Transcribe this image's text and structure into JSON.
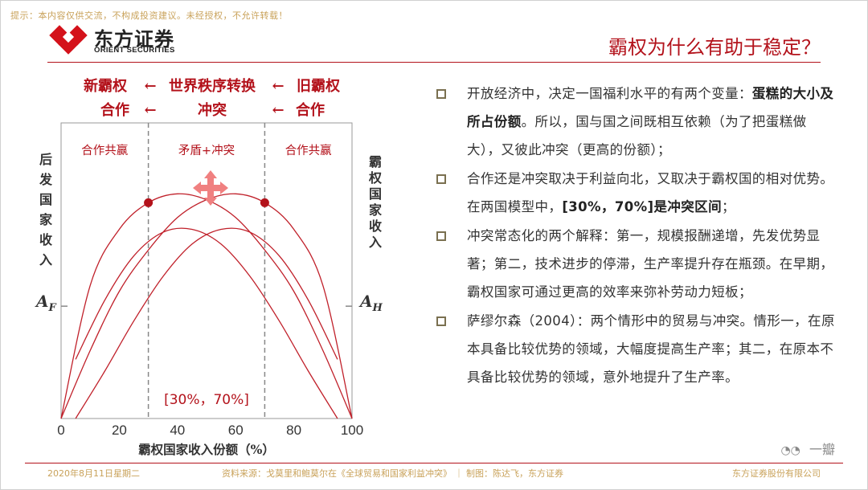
{
  "disclaimer": "提示：本内容仅供交流，不构成投资建议。未经授权，不允许转载！",
  "logo": {
    "cn": "东方证券",
    "en": "ORIENT SECURITIES"
  },
  "title": "霸权为什么有助于稳定？",
  "bullets": [
    {
      "segments": [
        {
          "text": "开放经济中，决定一国福利水平的有两个变量：",
          "bold": false
        },
        {
          "text": "蛋糕的大小及所占份额",
          "bold": true
        },
        {
          "text": "。所以，国与国之间既相互依赖（为了把蛋糕做大），又彼此冲突（更高的份额）；",
          "bold": false
        }
      ]
    },
    {
      "segments": [
        {
          "text": "合作还是冲突取决于利益向北，又取决于霸权国的相对优势。在两国模型中，",
          "bold": false
        },
        {
          "text": "[30%，70%]是冲突区间",
          "bold": true
        },
        {
          "text": "；",
          "bold": false
        }
      ]
    },
    {
      "segments": [
        {
          "text": "冲突常态化的两个解释：第一，规模报酬递增，先发优势显著；第二，技术进步的停滞，生产率提升存在瓶颈。在早期，霸权国家可通过更高的效率来弥补劳动力短板；",
          "bold": false
        }
      ]
    },
    {
      "segments": [
        {
          "text": "萨缪尔森（2004）：两个情形中的贸易与冲突。情形一，在原本具备比较优势的领域，大幅度提高生产率；其二，在原本不具备比较优势的领域，意外地提升了生产率。",
          "bold": false
        }
      ]
    }
  ],
  "footer": {
    "date": "2020年8月11日星期二",
    "source": "资料来源：戈莫里和鲍莫尔在《全球贸易和国家利益冲突》 ｜ 制图：陈达飞，东方证券",
    "company": "东方证券股份有限公司"
  },
  "watermark": "一瓣",
  "chart_data": {
    "type": "line",
    "header": {
      "row1": [
        "新霸权",
        "←",
        "世界秩序转换",
        "←",
        "旧霸权"
      ],
      "row2": [
        "合作",
        "←",
        "冲突",
        "←",
        "合作"
      ]
    },
    "zones": [
      "合作共赢",
      "矛盾+冲突",
      "合作共赢"
    ],
    "xlabel": "霸权国家收入份额（%）",
    "ylabel_left": "后发国家收入",
    "ylabel_right": "霸权国家收入",
    "af_label": "A",
    "af_sub": "F",
    "ah_label": "A",
    "ah_sub": "H",
    "x_ticks": [
      0,
      20,
      40,
      60,
      80,
      100
    ],
    "xlim": [
      0,
      100
    ],
    "ylim": [
      0,
      1
    ],
    "conflict_label": "[30%，70%]",
    "conflict_bounds": [
      30,
      70
    ],
    "series": [
      {
        "x": [
          0,
          10,
          20,
          30,
          40,
          50,
          60,
          70,
          80,
          90,
          100
        ],
        "y": [
          0.0,
          0.23,
          0.43,
          0.57,
          0.68,
          0.74,
          0.76,
          0.73,
          0.64,
          0.45,
          0.0
        ]
      },
      {
        "x": [
          5,
          15,
          25,
          35,
          45,
          55,
          65,
          75,
          85,
          95
        ],
        "y": [
          0.0,
          0.16,
          0.33,
          0.48,
          0.59,
          0.64,
          0.63,
          0.55,
          0.4,
          0.2
        ]
      },
      {
        "x": [
          0,
          10,
          20,
          30,
          40,
          50,
          60,
          70,
          80,
          90,
          100
        ],
        "y": [
          0.0,
          0.45,
          0.64,
          0.73,
          0.76,
          0.74,
          0.68,
          0.57,
          0.43,
          0.23,
          0.0
        ]
      },
      {
        "x": [
          5,
          15,
          25,
          35,
          45,
          55,
          65,
          75,
          85,
          95
        ],
        "y": [
          0.2,
          0.4,
          0.55,
          0.63,
          0.64,
          0.59,
          0.48,
          0.33,
          0.16,
          0.0
        ]
      }
    ],
    "peaks": [
      {
        "x": 30,
        "y": 0.73
      },
      {
        "x": 70,
        "y": 0.73
      }
    ],
    "a_level": 0.38,
    "colors": {
      "curve": "#c0202a",
      "dot": "#b3121b",
      "accent": "#b3121b",
      "arrow": "#f08080"
    }
  }
}
